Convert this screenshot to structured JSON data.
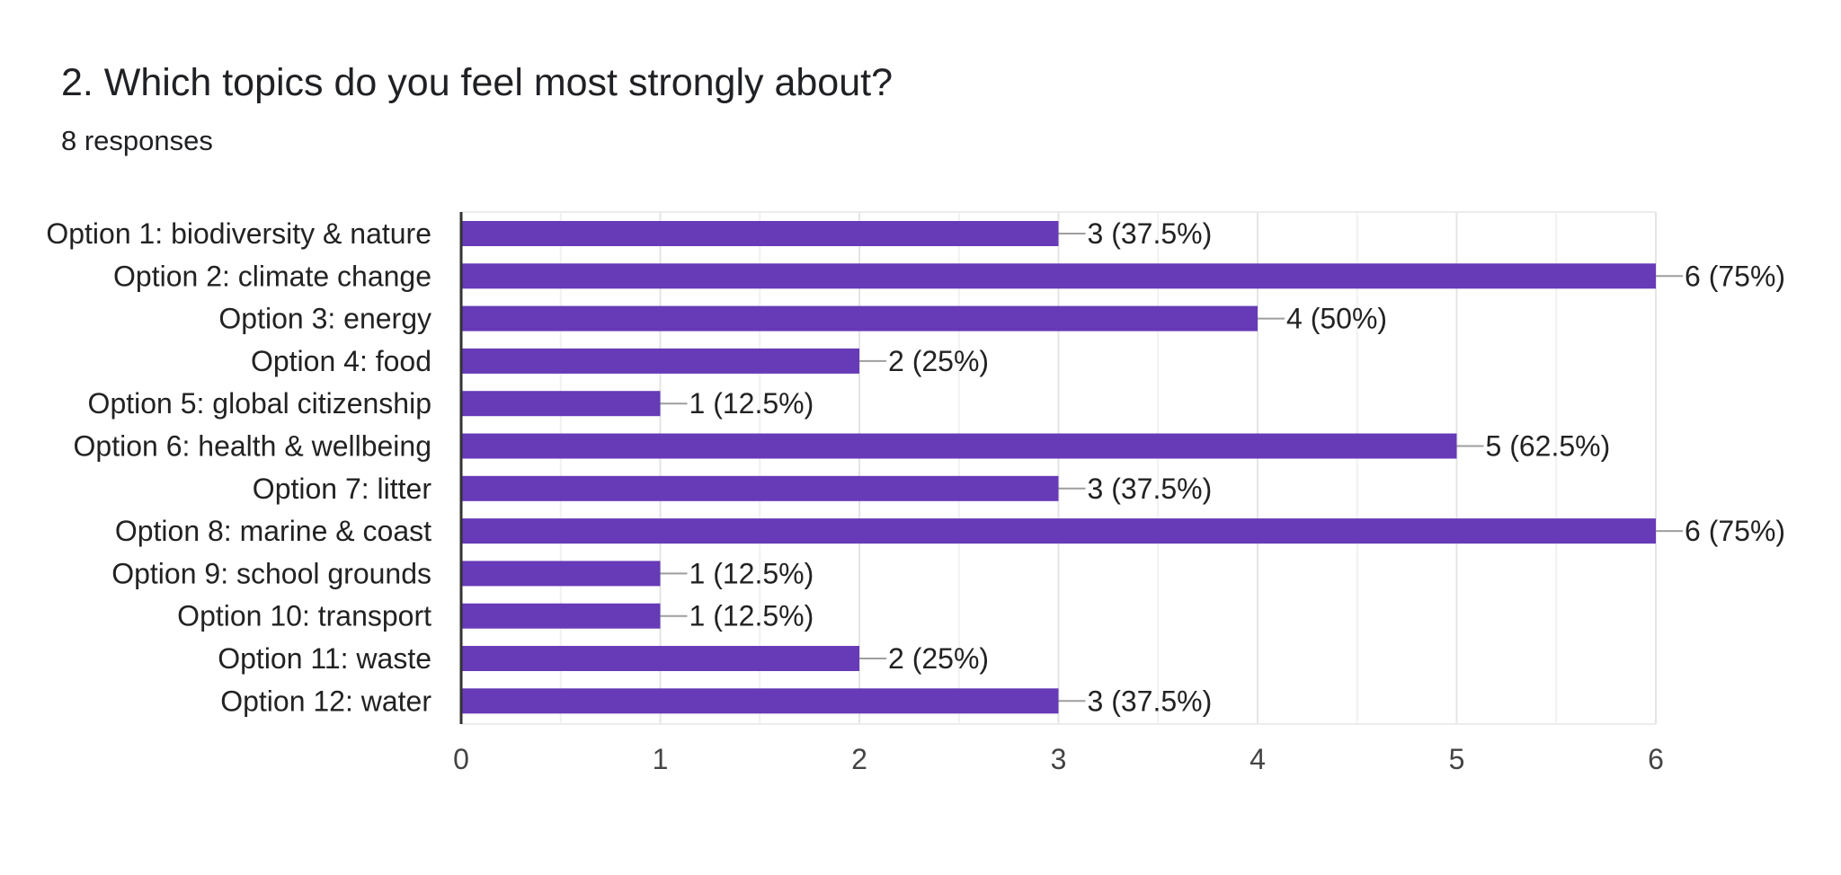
{
  "question": {
    "title": "2. Which topics do you feel most strongly about?",
    "responses": "8 responses"
  },
  "chart_data": {
    "type": "bar",
    "orientation": "horizontal",
    "categories": [
      "Option 1: biodiversity & nature",
      "Option 2: climate change",
      "Option 3: energy",
      "Option 4: food",
      "Option 5: global citizenship",
      "Option 6: health & wellbeing",
      "Option 7: litter",
      "Option 8: marine & coast",
      "Option 9: school grounds",
      "Option 10: transport",
      "Option 11: waste",
      "Option 12: water"
    ],
    "values": [
      3,
      6,
      4,
      2,
      1,
      5,
      3,
      6,
      1,
      1,
      2,
      3
    ],
    "value_labels": [
      "3 (37.5%)",
      "6 (75%)",
      "4 (50%)",
      "2 (25%)",
      "1 (12.5%)",
      "5 (62.5%)",
      "3 (37.5%)",
      "6 (75%)",
      "1 (12.5%)",
      "1 (12.5%)",
      "2 (25%)",
      "3 (37.5%)"
    ],
    "x_ticks": [
      "0",
      "1",
      "2",
      "3",
      "4",
      "5",
      "6"
    ],
    "xlim": [
      0,
      6
    ],
    "grid": true,
    "bar_color": "#673ab7"
  }
}
